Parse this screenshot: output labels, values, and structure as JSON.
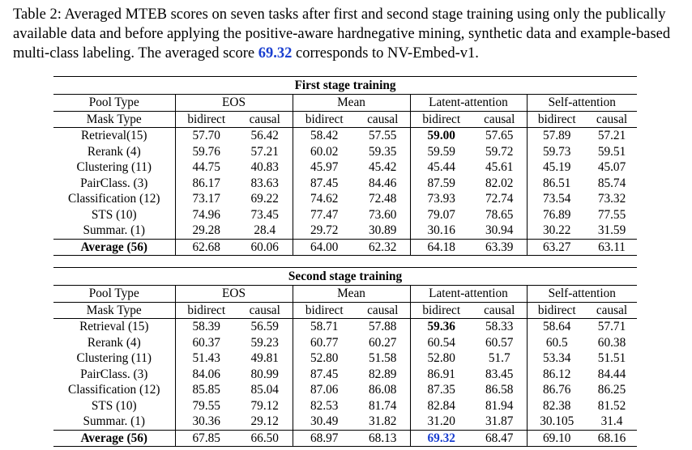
{
  "caption": {
    "prefix": "Table 2: Averaged MTEB scores on seven tasks after first and second stage training using only the publically available data and before applying the positive-aware hardnegative mining, synthetic data and example-based multi-class labeling. The averaged score ",
    "highlight": "69.32",
    "suffix": " corresponds to NV-Embed-v1."
  },
  "header": {
    "pool_label": "Pool Type",
    "mask_label": "Mask Type",
    "pools": [
      "EOS",
      "Mean",
      "Latent-attention",
      "Self-attention"
    ],
    "masks": [
      "bidirect",
      "causal",
      "bidirect",
      "causal",
      "bidirect",
      "causal",
      "bidirect",
      "causal"
    ]
  },
  "tables": [
    {
      "title": "First stage training",
      "rows": [
        {
          "label": "Retrieval(15)",
          "values": [
            "57.70",
            "56.42",
            "58.42",
            "57.55",
            "59.00",
            "57.65",
            "57.89",
            "57.21"
          ]
        },
        {
          "label": "Rerank (4)",
          "values": [
            "59.76",
            "57.21",
            "60.02",
            "59.35",
            "59.59",
            "59.72",
            "59.73",
            "59.51"
          ]
        },
        {
          "label": "Clustering (11)",
          "values": [
            "44.75",
            "40.83",
            "45.97",
            "45.42",
            "45.44",
            "45.61",
            "45.19",
            "45.07"
          ]
        },
        {
          "label": "PairClass. (3)",
          "values": [
            "86.17",
            "83.63",
            "87.45",
            "84.46",
            "87.59",
            "82.02",
            "86.51",
            "85.74"
          ]
        },
        {
          "label": "Classification (12)",
          "values": [
            "73.17",
            "69.22",
            "74.62",
            "72.48",
            "73.93",
            "72.74",
            "73.54",
            "73.32"
          ]
        },
        {
          "label": "STS (10)",
          "values": [
            "74.96",
            "73.45",
            "77.47",
            "73.60",
            "79.07",
            "78.65",
            "76.89",
            "77.55"
          ]
        },
        {
          "label": "Summar. (1)",
          "values": [
            "29.28",
            "28.4",
            "29.72",
            "30.89",
            "30.16",
            "30.94",
            "30.22",
            "31.59"
          ]
        }
      ],
      "average": {
        "label": "Average (56)",
        "values": [
          "62.68",
          "60.06",
          "64.00",
          "62.32",
          "64.18",
          "63.39",
          "63.27",
          "63.11"
        ]
      }
    },
    {
      "title": "Second stage training",
      "rows": [
        {
          "label": "Retrieval (15)",
          "values": [
            "58.39",
            "56.59",
            "58.71",
            "57.88",
            "59.36",
            "58.33",
            "58.64",
            "57.71"
          ]
        },
        {
          "label": "Rerank (4)",
          "values": [
            "60.37",
            "59.23",
            "60.77",
            "60.27",
            "60.54",
            "60.57",
            "60.5",
            "60.38"
          ]
        },
        {
          "label": "Clustering (11)",
          "values": [
            "51.43",
            "49.81",
            "52.80",
            "51.58",
            "52.80",
            "51.7",
            "53.34",
            "51.51"
          ]
        },
        {
          "label": "PairClass. (3)",
          "values": [
            "84.06",
            "80.99",
            "87.45",
            "82.89",
            "86.91",
            "83.45",
            "86.12",
            "84.44"
          ]
        },
        {
          "label": "Classification (12)",
          "values": [
            "85.85",
            "85.04",
            "87.06",
            "86.08",
            "87.35",
            "86.58",
            "86.76",
            "86.25"
          ]
        },
        {
          "label": "STS (10)",
          "values": [
            "79.55",
            "79.12",
            "82.53",
            "81.74",
            "82.84",
            "81.94",
            "82.38",
            "81.52"
          ]
        },
        {
          "label": "Summar. (1)",
          "values": [
            "30.36",
            "29.12",
            "30.49",
            "31.82",
            "31.20",
            "31.87",
            "30.105",
            "31.4"
          ]
        }
      ],
      "average": {
        "label": "Average (56)",
        "values": [
          "67.85",
          "66.50",
          "68.97",
          "68.13",
          "69.32",
          "68.47",
          "69.10",
          "68.16"
        ]
      }
    }
  ],
  "highlight_colors": {
    "blue": "#1a3fd0"
  }
}
